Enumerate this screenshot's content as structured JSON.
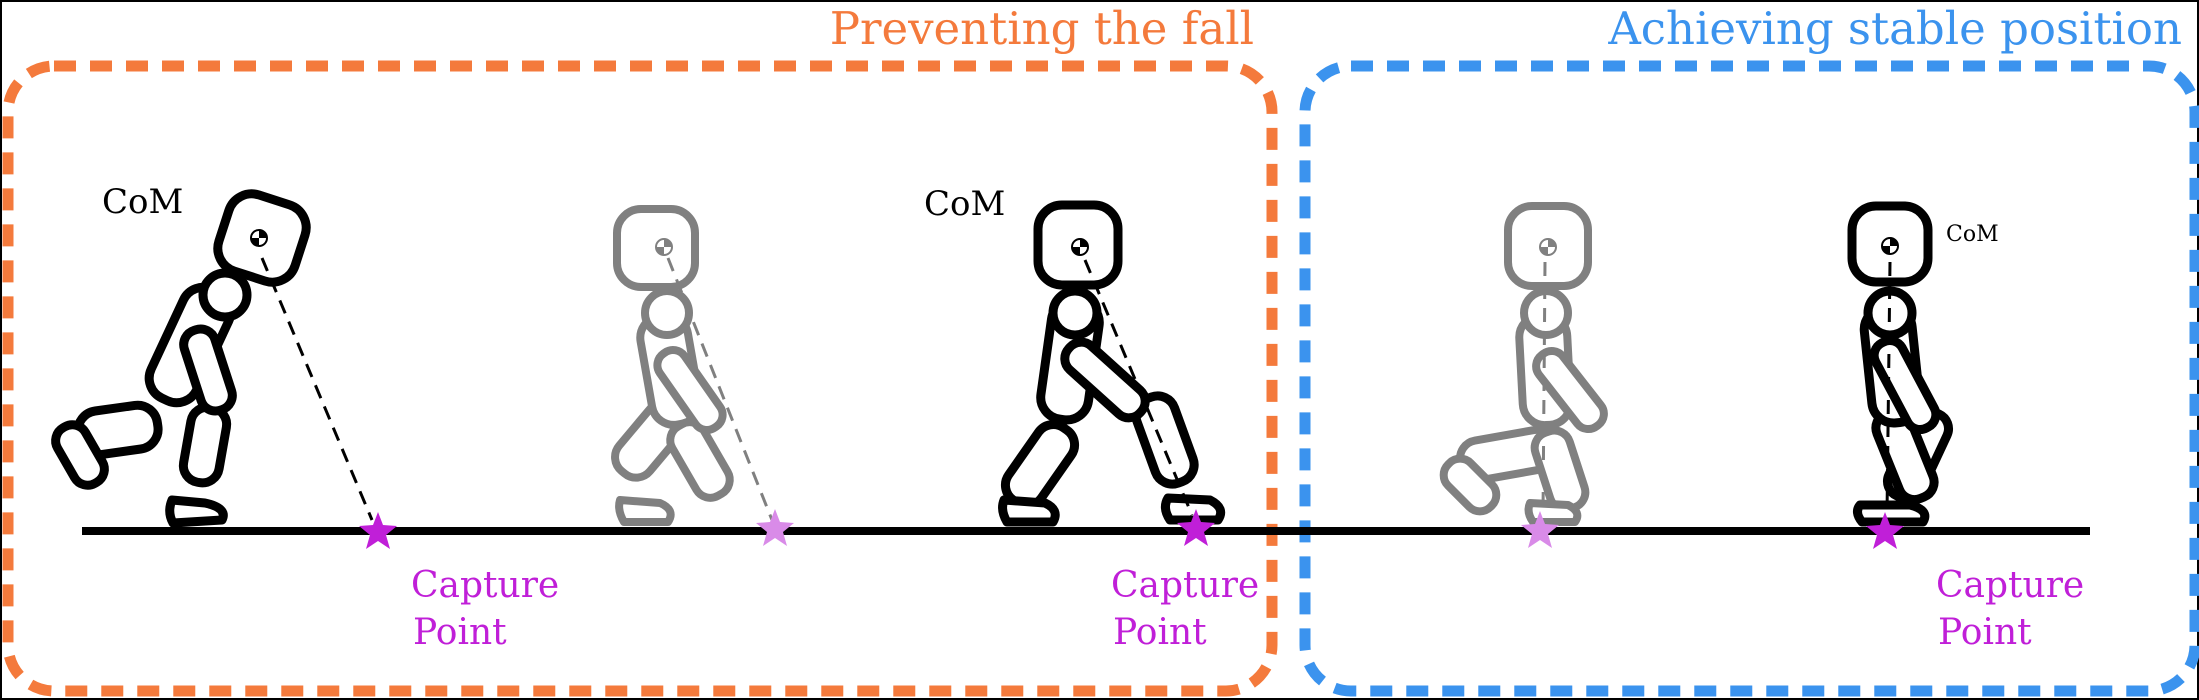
{
  "sections": {
    "left_title": "Preventing the fall",
    "right_title": "Achieving stable position"
  },
  "labels": {
    "com_1": "CoM",
    "com_2": "CoM",
    "com_3": "CoM",
    "capture_1_line1": "Capture",
    "capture_1_line2": "Point",
    "capture_2_line1": "Capture",
    "capture_2_line2": "Point",
    "capture_3_line1": "Capture",
    "capture_3_line2": "Point"
  },
  "colors": {
    "left_section": "#F47A3C",
    "right_section": "#3B93EE",
    "capture_point": "#C01FD8",
    "capture_point_faded": "#D98BE8",
    "figure_active": "#000000",
    "figure_faded": "#808080"
  },
  "figures": [
    {
      "id": "fig-1",
      "state": "active"
    },
    {
      "id": "fig-2",
      "state": "faded"
    },
    {
      "id": "fig-3",
      "state": "active"
    },
    {
      "id": "fig-4",
      "state": "faded"
    },
    {
      "id": "fig-5",
      "state": "active"
    }
  ]
}
